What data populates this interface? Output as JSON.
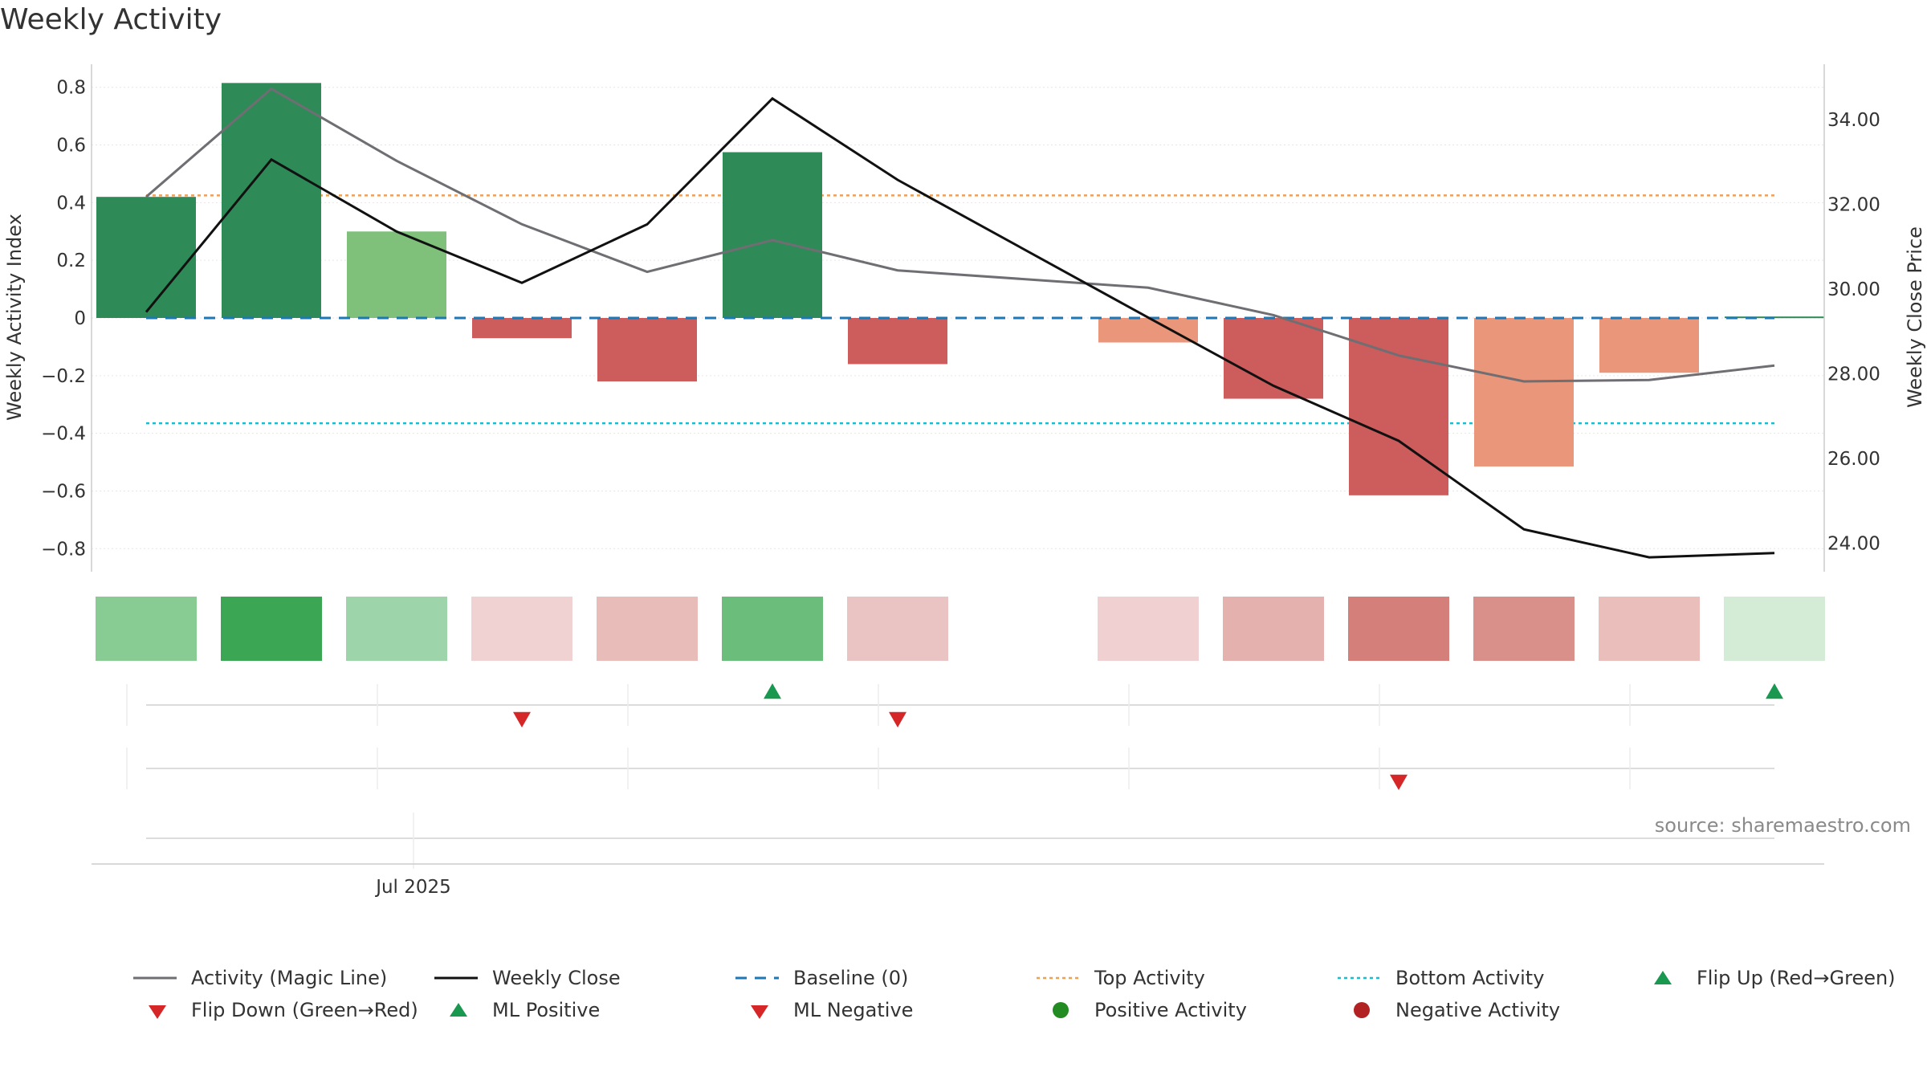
{
  "title": "Weekly Activity",
  "source": "source: sharemaestro.com",
  "colors": {
    "strong_pos": "#2e8b57",
    "light_pos": "#7fc17b",
    "strong_neg": "#cd5c5c",
    "light_neg": "#e9967a",
    "magic": "#6e6e73",
    "close": "#111111",
    "baseline": "#1f77b4",
    "top": "#f0a050",
    "bottom": "#17becf",
    "up": "#1a9850",
    "down": "#d62728",
    "pos_dot": "#228b22",
    "neg_dot": "#b22222"
  },
  "legend": [
    {
      "label": "Activity (Magic Line)",
      "sym": "solid",
      "color": "#6e6e73"
    },
    {
      "label": "Weekly Close",
      "sym": "solid",
      "color": "#111111"
    },
    {
      "label": "Baseline (0)",
      "sym": "dash",
      "color": "#1f77b4"
    },
    {
      "label": "Top Activity",
      "sym": "dot",
      "color": "#f0a050"
    },
    {
      "label": "Bottom Activity",
      "sym": "dot",
      "color": "#17becf"
    },
    {
      "label": "Flip Up (Red→Green)",
      "sym": "up",
      "color": "#1a9850"
    },
    {
      "label": "Flip Down (Green→Red)",
      "sym": "down",
      "color": "#d62728"
    },
    {
      "label": "ML Positive",
      "sym": "up",
      "color": "#1a9850"
    },
    {
      "label": "ML Negative",
      "sym": "down",
      "color": "#d62728"
    },
    {
      "label": "Positive Activity",
      "sym": "circle",
      "color": "#228b22"
    },
    {
      "label": "Negative Activity",
      "sym": "circle",
      "color": "#b22222"
    }
  ],
  "chart_data": {
    "type": "bar",
    "ylabel": "Weekly Activity Index",
    "y2label": "Weekly Close Price",
    "ylim": [
      -0.88,
      0.88
    ],
    "y2lim": [
      23.33,
      35.31
    ],
    "yticks": [
      "0.8",
      "0.6",
      "0.4",
      "0.2",
      "0",
      "−0.2",
      "−0.4",
      "−0.6",
      "−0.8"
    ],
    "yticks_values": [
      0.8,
      0.6,
      0.4,
      0.2,
      0,
      -0.2,
      -0.4,
      -0.6,
      -0.8
    ],
    "y2ticks": [
      "34.00",
      "32.00",
      "30.00",
      "28.00",
      "26.00",
      "24.00"
    ],
    "y2ticks_values": [
      34,
      32,
      30,
      28,
      26,
      24
    ],
    "xtick_label": "Jul 2025",
    "top_activity": 0.425,
    "bottom_activity": -0.365,
    "baseline": 0,
    "weeks": 14,
    "bars": [
      {
        "week": 0,
        "value": 0.42,
        "shade": "strong_pos"
      },
      {
        "week": 1,
        "value": 0.815,
        "shade": "strong_pos"
      },
      {
        "week": 2,
        "value": 0.3,
        "shade": "light_pos"
      },
      {
        "week": 3,
        "value": -0.07,
        "shade": "strong_neg"
      },
      {
        "week": 4,
        "value": -0.22,
        "shade": "strong_neg"
      },
      {
        "week": 5,
        "value": 0.575,
        "shade": "strong_pos"
      },
      {
        "week": 6,
        "value": -0.16,
        "shade": "strong_neg"
      },
      {
        "week": 8,
        "value": -0.085,
        "shade": "light_neg"
      },
      {
        "week": 9,
        "value": -0.28,
        "shade": "strong_neg"
      },
      {
        "week": 10,
        "value": -0.615,
        "shade": "strong_neg"
      },
      {
        "week": 11,
        "value": -0.515,
        "shade": "light_neg"
      },
      {
        "week": 12,
        "value": -0.19,
        "shade": "light_neg"
      },
      {
        "week": 13,
        "value": 0.005,
        "shade": "strong_pos"
      }
    ],
    "series": [
      {
        "name": "Activity (Magic Line)",
        "axis": "left",
        "x": [
          0,
          1,
          2,
          3,
          4,
          5,
          6,
          8,
          9,
          10,
          11,
          12,
          13
        ],
        "values": [
          0.42,
          0.795,
          0.545,
          0.325,
          0.16,
          0.27,
          0.165,
          0.105,
          0.01,
          -0.13,
          -0.22,
          -0.215,
          -0.165
        ]
      },
      {
        "name": "Weekly Close",
        "axis": "right",
        "x": [
          0,
          1,
          2,
          3,
          4,
          5,
          6,
          8,
          9,
          10,
          11,
          12,
          13
        ],
        "values": [
          29.46,
          33.06,
          31.36,
          30.15,
          31.53,
          34.5,
          32.58,
          29.33,
          27.72,
          26.42,
          24.33,
          23.67,
          23.77
        ]
      }
    ],
    "heat_strip": [
      {
        "week": 0,
        "color": "#88cc94"
      },
      {
        "week": 1,
        "color": "#3ba654"
      },
      {
        "week": 2,
        "color": "#9dd4a9"
      },
      {
        "week": 3,
        "color": "#f1d2d2"
      },
      {
        "week": 4,
        "color": "#e8bcb9"
      },
      {
        "week": 5,
        "color": "#6bbd7c"
      },
      {
        "week": 6,
        "color": "#eac4c2"
      },
      {
        "week": 8,
        "color": "#f0d0d0"
      },
      {
        "week": 9,
        "color": "#e4b1ae"
      },
      {
        "week": 10,
        "color": "#d47f7a"
      },
      {
        "week": 11,
        "color": "#d98f8a"
      },
      {
        "week": 12,
        "color": "#e9bebb"
      },
      {
        "week": 13,
        "color": "#d4ebd6"
      }
    ],
    "flip_markers": [
      {
        "week": 3,
        "dir": "down"
      },
      {
        "week": 5,
        "dir": "up"
      },
      {
        "week": 6,
        "dir": "down"
      },
      {
        "week": 13,
        "dir": "up"
      }
    ],
    "ml_markers": [
      {
        "week": 10,
        "dir": "down"
      }
    ]
  }
}
